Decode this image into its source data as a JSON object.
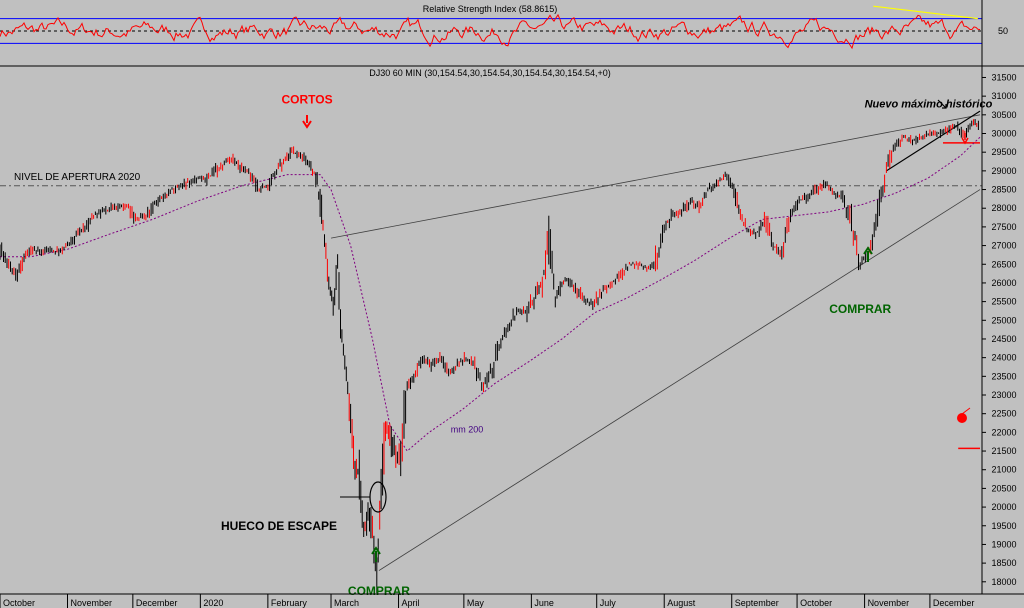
{
  "chart_data": [
    {
      "type": "line",
      "panel": "rsi",
      "title": "Relative Strength Index (58.8615)",
      "ylim": [
        0,
        100
      ],
      "ytick_labels": [
        {
          "value": 50,
          "label": "50"
        }
      ],
      "levels": [
        30,
        50,
        70
      ],
      "colors": {
        "rsi": "#ff0000",
        "levels": "#0000ff",
        "trend": "#ffff00"
      },
      "trend_line": {
        "x": [
          "2020-11-05",
          "2020-12-23"
        ],
        "y": [
          90,
          70
        ]
      },
      "grid": false
    },
    {
      "type": "ohlc",
      "panel": "price",
      "title": "DJ30 60 MIN (30,154.54,30,154.54,30,154.54,30,154.54,+0)",
      "ylim": [
        17700,
        31700
      ],
      "yticks": [
        18000,
        18500,
        19000,
        19500,
        20000,
        20500,
        21000,
        21500,
        22000,
        22500,
        23000,
        23500,
        24000,
        24500,
        25000,
        25500,
        26000,
        26500,
        27000,
        27500,
        28000,
        28500,
        29000,
        29500,
        30000,
        30500,
        31000,
        31500
      ],
      "x_labels": [
        "October",
        "November",
        "December",
        "2020",
        "February",
        "March",
        "April",
        "May",
        "June",
        "July",
        "August",
        "September",
        "October",
        "November",
        "December"
      ],
      "colors": {
        "bars": "#000000",
        "bars_highlight": "#ff0000",
        "ma": "#800080",
        "annotation_red": "#ff0000",
        "annotation_green": "#006400"
      },
      "series": [
        {
          "kind": "price",
          "x": [
            "2019-10-01",
            "2019-10-05",
            "2019-10-09",
            "2019-10-12",
            "2019-10-16",
            "2019-10-20",
            "2019-10-24",
            "2019-10-28",
            "2019-11-01",
            "2019-11-05",
            "2019-11-09",
            "2019-11-13",
            "2019-11-17",
            "2019-11-21",
            "2019-11-25",
            "2019-11-29",
            "2019-12-03",
            "2019-12-07",
            "2019-12-11",
            "2019-12-15",
            "2019-12-19",
            "2019-12-23",
            "2019-12-27",
            "2019-12-31",
            "2020-01-04",
            "2020-01-08",
            "2020-01-12",
            "2020-01-16",
            "2020-01-20",
            "2020-01-24",
            "2020-01-28",
            "2020-02-01",
            "2020-02-05",
            "2020-02-09",
            "2020-02-12",
            "2020-02-16",
            "2020-02-20",
            "2020-02-23",
            "2020-02-25",
            "2020-02-27",
            "2020-02-29",
            "2020-03-02",
            "2020-03-04",
            "2020-03-06",
            "2020-03-08",
            "2020-03-10",
            "2020-03-12",
            "2020-03-14",
            "2020-03-16",
            "2020-03-18",
            "2020-03-20",
            "2020-03-22",
            "2020-03-24",
            "2020-03-26",
            "2020-03-28",
            "2020-03-30",
            "2020-04-02",
            "2020-04-05",
            "2020-04-08",
            "2020-04-12",
            "2020-04-16",
            "2020-04-20",
            "2020-04-24",
            "2020-04-28",
            "2020-05-02",
            "2020-05-06",
            "2020-05-10",
            "2020-05-14",
            "2020-05-18",
            "2020-05-22",
            "2020-05-26",
            "2020-05-30",
            "2020-06-03",
            "2020-06-06",
            "2020-06-09",
            "2020-06-12",
            "2020-06-15",
            "2020-06-18",
            "2020-06-22",
            "2020-06-26",
            "2020-06-30",
            "2020-07-04",
            "2020-07-08",
            "2020-07-12",
            "2020-07-16",
            "2020-07-20",
            "2020-07-24",
            "2020-07-28",
            "2020-08-01",
            "2020-08-05",
            "2020-08-09",
            "2020-08-13",
            "2020-08-17",
            "2020-08-21",
            "2020-08-25",
            "2020-08-29",
            "2020-09-02",
            "2020-09-05",
            "2020-09-08",
            "2020-09-12",
            "2020-09-16",
            "2020-09-20",
            "2020-09-24",
            "2020-09-28",
            "2020-10-02",
            "2020-10-06",
            "2020-10-10",
            "2020-10-14",
            "2020-10-18",
            "2020-10-22",
            "2020-10-26",
            "2020-10-30",
            "2020-11-03",
            "2020-11-07",
            "2020-11-11",
            "2020-11-15",
            "2020-11-19",
            "2020-11-23",
            "2020-11-27",
            "2020-12-01",
            "2020-12-05",
            "2020-12-09",
            "2020-12-13",
            "2020-12-17",
            "2020-12-21",
            "2020-12-24"
          ],
          "y": [
            26900,
            26500,
            26200,
            26700,
            26900,
            26800,
            26900,
            26800,
            27000,
            27300,
            27500,
            27800,
            27900,
            28000,
            28100,
            28000,
            27700,
            27800,
            28100,
            28300,
            28500,
            28600,
            28700,
            28800,
            28800,
            29000,
            29200,
            29300,
            29100,
            28900,
            28500,
            28600,
            29000,
            29300,
            29500,
            29400,
            29200,
            28900,
            28200,
            27200,
            26000,
            25500,
            26500,
            24500,
            23500,
            22500,
            21000,
            21000,
            19500,
            19800,
            19200,
            18400,
            20000,
            22000,
            22000,
            21500,
            21300,
            23200,
            23500,
            24000,
            23800,
            24000,
            23600,
            23800,
            24000,
            23800,
            23200,
            23700,
            24500,
            24800,
            25300,
            25200,
            25700,
            26000,
            27400,
            25500,
            26000,
            26100,
            25800,
            25500,
            25400,
            25800,
            26000,
            26200,
            26500,
            26500,
            26400,
            26500,
            27500,
            27800,
            27900,
            28200,
            28000,
            28500,
            28600,
            28900,
            28500,
            27800,
            27400,
            27300,
            27700,
            27000,
            26800,
            27800,
            28200,
            28300,
            28500,
            28700,
            28400,
            28300,
            27600,
            26500,
            26800,
            27800,
            29100,
            29700,
            29900,
            29800,
            29900,
            30000,
            30000,
            30100,
            30200,
            30000,
            30300,
            30150
          ]
        },
        {
          "kind": "ma",
          "name": "mm 200",
          "x": [
            "2019-10-01",
            "2019-10-15",
            "2019-11-01",
            "2019-11-20",
            "2019-12-10",
            "2019-12-31",
            "2020-01-20",
            "2020-02-10",
            "2020-02-25",
            "2020-03-01",
            "2020-03-10",
            "2020-03-20",
            "2020-03-28",
            "2020-04-05",
            "2020-04-15",
            "2020-04-30",
            "2020-05-15",
            "2020-05-31",
            "2020-06-15",
            "2020-06-30",
            "2020-07-15",
            "2020-07-31",
            "2020-08-15",
            "2020-08-31",
            "2020-09-15",
            "2020-09-30",
            "2020-10-15",
            "2020-10-31",
            "2020-11-15",
            "2020-11-30",
            "2020-12-15",
            "2020-12-24"
          ],
          "y": [
            26700,
            26700,
            26900,
            27300,
            27700,
            28200,
            28600,
            28900,
            28900,
            28500,
            27000,
            24500,
            22200,
            21500,
            22000,
            22600,
            23300,
            23900,
            24500,
            25200,
            25600,
            26100,
            26600,
            27200,
            27700,
            27800,
            27900,
            28100,
            28400,
            28800,
            29400,
            29900
          ]
        }
      ],
      "lines": [
        {
          "label": "NIVEL DE APERTURA 2020",
          "y": 28600,
          "style": "dashed"
        },
        {
          "y": 29750,
          "x": [
            "2020-12-07",
            "2020-12-24"
          ],
          "style": "solid",
          "color": "#ff0000"
        },
        {
          "y": 21570,
          "x": [
            "2020-12-14",
            "2020-12-24"
          ],
          "style": "solid",
          "color": "#ff0000"
        }
      ],
      "trend_lines": [
        {
          "x": [
            "2020-03-01",
            "2020-12-24"
          ],
          "y": [
            27200,
            30500
          ]
        },
        {
          "x": [
            "2020-03-23",
            "2020-12-24"
          ],
          "y": [
            18300,
            28500
          ]
        },
        {
          "x": [
            "2020-11-11",
            "2020-12-24"
          ],
          "y": [
            29000,
            30600
          ]
        }
      ],
      "annotations": [
        {
          "text": "CORTOS",
          "x": "2020-02-19",
          "y": 30800,
          "color": "red"
        },
        {
          "text": "Nuevo máximo histórico",
          "x": "2020-11-01",
          "y": 30700,
          "color": "black"
        },
        {
          "text": "HUECO DE ESCAPE",
          "x": "2020-03-10",
          "y": 19500,
          "color": "black"
        },
        {
          "text": "COMPRAR",
          "x": "2020-03-23",
          "y": 17650,
          "color": "green"
        },
        {
          "text": "COMPRAR",
          "x": "2020-10-30",
          "y": 25200,
          "color": "green"
        },
        {
          "text": "mm 200",
          "x": "2020-04-25",
          "y": 22000,
          "color": "purple"
        }
      ]
    }
  ]
}
